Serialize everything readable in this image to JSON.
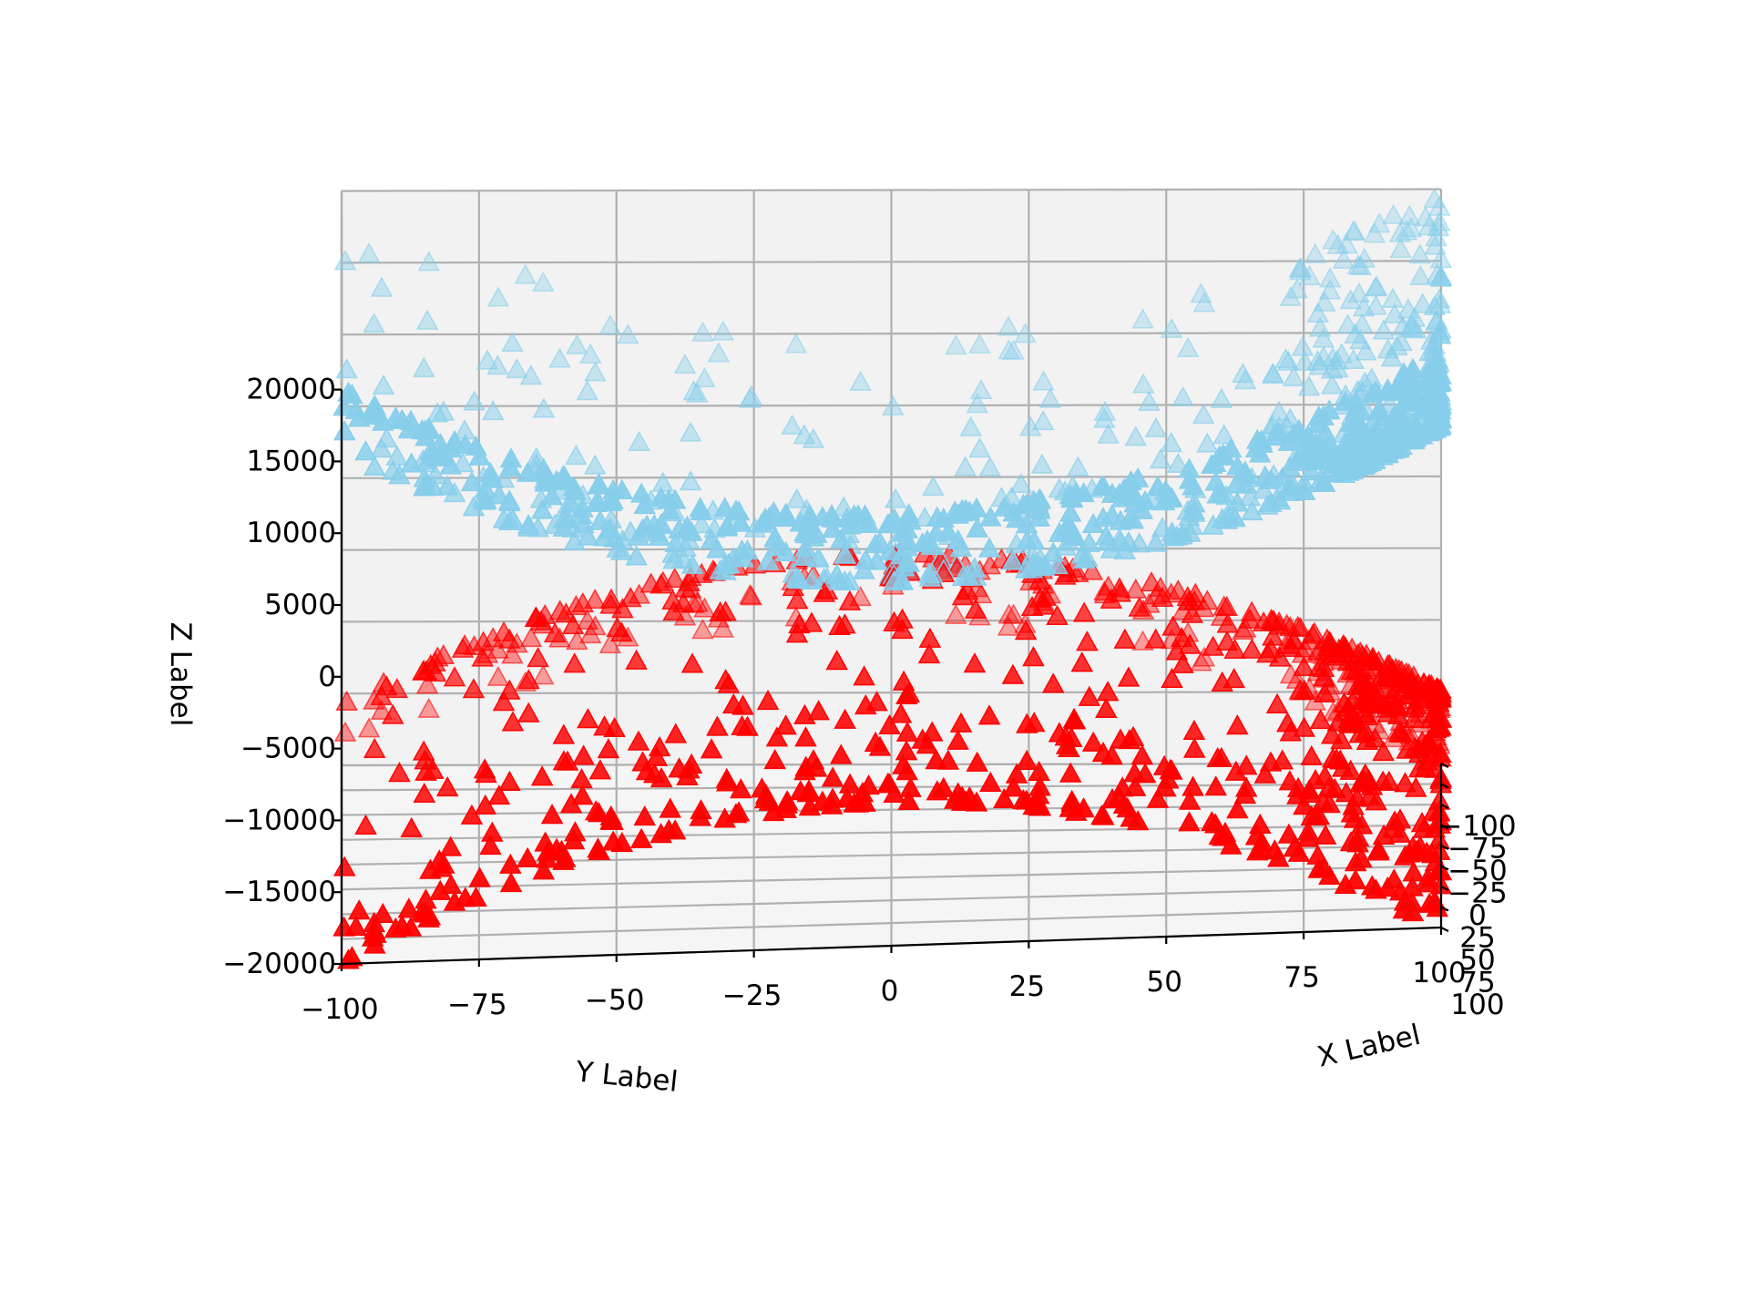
{
  "chart_data": {
    "type": "scatter",
    "projection": "3d",
    "marker": "triangle",
    "xlabel": "X Label",
    "ylabel": "Y Label",
    "zlabel": "Z Label",
    "xlim": [
      -100,
      100
    ],
    "ylim": [
      -100,
      100
    ],
    "zlim": [
      -20000,
      20000
    ],
    "x_ticks": [
      "100",
      "75",
      "50",
      "25",
      "0",
      "−25",
      "−50",
      "−75",
      "−100"
    ],
    "y_ticks": [
      "−100",
      "−75",
      "−50",
      "−25",
      "0",
      "25",
      "50",
      "75",
      "100"
    ],
    "z_ticks": [
      "−20000",
      "−15000",
      "−10000",
      "−5000",
      "0",
      "5000",
      "10000",
      "15000",
      "20000"
    ],
    "grid": true,
    "series": [
      {
        "color": "#87CEEB",
        "equation": "z = x^2 + y^2",
        "x_range": [
          -100,
          100
        ],
        "y_range": [
          -100,
          100
        ],
        "z_range": [
          0,
          20000
        ]
      },
      {
        "color": "#FF0000",
        "equation": "z = -(x^2 + y^2)",
        "x_range": [
          -100,
          100
        ],
        "y_range": [
          -100,
          100
        ],
        "z_range": [
          -20000,
          0
        ]
      }
    ]
  }
}
